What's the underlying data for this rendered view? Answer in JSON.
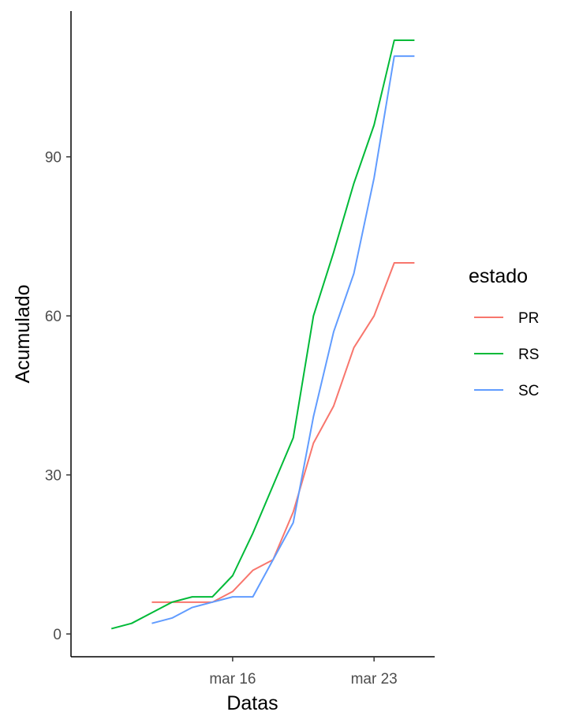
{
  "chart_data": {
    "type": "line",
    "xlabel": "Datas",
    "ylabel": "Acumulado",
    "x_ticks": [
      {
        "date": "2020-03-16",
        "label": "mar 16"
      },
      {
        "date": "2020-03-23",
        "label": "mar 23"
      }
    ],
    "y_ticks": [
      0,
      30,
      60,
      90
    ],
    "xlim": [
      "2020-03-08",
      "2020-03-26"
    ],
    "ylim": [
      -4.3,
      117.5
    ],
    "grid": false,
    "legend": {
      "title": "estado",
      "position": "right"
    },
    "series": [
      {
        "name": "PR",
        "color": "#F8766D",
        "points": [
          [
            "2020-03-12",
            6
          ],
          [
            "2020-03-13",
            6
          ],
          [
            "2020-03-14",
            6
          ],
          [
            "2020-03-15",
            6
          ],
          [
            "2020-03-16",
            8
          ],
          [
            "2020-03-17",
            12
          ],
          [
            "2020-03-18",
            14
          ],
          [
            "2020-03-19",
            23
          ],
          [
            "2020-03-20",
            36
          ],
          [
            "2020-03-21",
            43
          ],
          [
            "2020-03-22",
            54
          ],
          [
            "2020-03-23",
            60
          ],
          [
            "2020-03-24",
            70
          ],
          [
            "2020-03-25",
            70
          ]
        ]
      },
      {
        "name": "RS",
        "color": "#00BA38",
        "points": [
          [
            "2020-03-10",
            1
          ],
          [
            "2020-03-11",
            2
          ],
          [
            "2020-03-12",
            4
          ],
          [
            "2020-03-13",
            6
          ],
          [
            "2020-03-14",
            7
          ],
          [
            "2020-03-15",
            7
          ],
          [
            "2020-03-16",
            11
          ],
          [
            "2020-03-17",
            19
          ],
          [
            "2020-03-18",
            28
          ],
          [
            "2020-03-19",
            37
          ],
          [
            "2020-03-20",
            60
          ],
          [
            "2020-03-21",
            72
          ],
          [
            "2020-03-22",
            85
          ],
          [
            "2020-03-23",
            96
          ],
          [
            "2020-03-24",
            112
          ],
          [
            "2020-03-25",
            112
          ]
        ]
      },
      {
        "name": "SC",
        "color": "#619CFF",
        "points": [
          [
            "2020-03-12",
            2
          ],
          [
            "2020-03-13",
            3
          ],
          [
            "2020-03-14",
            5
          ],
          [
            "2020-03-15",
            6
          ],
          [
            "2020-03-16",
            7
          ],
          [
            "2020-03-17",
            7
          ],
          [
            "2020-03-18",
            14
          ],
          [
            "2020-03-19",
            21
          ],
          [
            "2020-03-20",
            41
          ],
          [
            "2020-03-21",
            57
          ],
          [
            "2020-03-22",
            68
          ],
          [
            "2020-03-23",
            86
          ],
          [
            "2020-03-24",
            109
          ],
          [
            "2020-03-25",
            109
          ]
        ]
      }
    ]
  }
}
